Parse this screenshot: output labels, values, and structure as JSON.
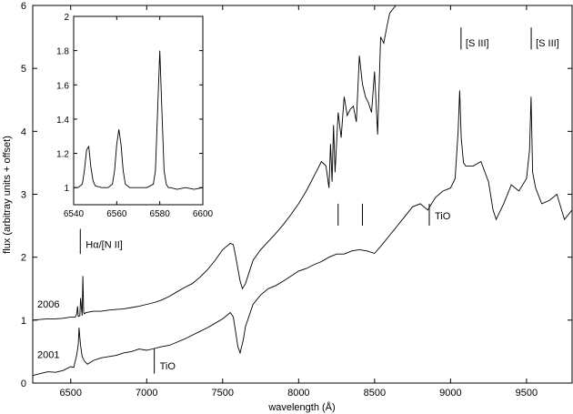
{
  "chart_data": [
    {
      "type": "line",
      "title": "",
      "xlabel": "wavelength (Å)",
      "ylabel": "flux (arbitray units + offset)",
      "xlim": [
        6250,
        9800
      ],
      "ylim": [
        0,
        6
      ],
      "xticks": [
        6500,
        7000,
        7500,
        8000,
        8500,
        9000,
        9500
      ],
      "yticks": [
        0,
        1,
        2,
        3,
        4,
        5,
        6
      ],
      "grid": false,
      "series": [
        {
          "name": "2006",
          "x": [
            6250,
            6300,
            6350,
            6400,
            6450,
            6500,
            6530,
            6540,
            6545,
            6550,
            6560,
            6565,
            6575,
            6580,
            6585,
            6590,
            6600,
            6650,
            6700,
            6750,
            6800,
            6850,
            6900,
            6950,
            7000,
            7050,
            7100,
            7150,
            7200,
            7250,
            7300,
            7350,
            7400,
            7450,
            7500,
            7550,
            7570,
            7585,
            7600,
            7615,
            7630,
            7650,
            7700,
            7750,
            7800,
            7850,
            7900,
            7950,
            8000,
            8050,
            8100,
            8150,
            8180,
            8200,
            8210,
            8220,
            8230,
            8240,
            8260,
            8280,
            8300,
            8320,
            8340,
            8360,
            8380,
            8400,
            8420,
            8440,
            8460,
            8480,
            8500,
            8520,
            8540,
            8560,
            8580,
            8600,
            8640
          ],
          "values": [
            1.0,
            1.01,
            1.02,
            1.02,
            1.03,
            1.05,
            1.05,
            1.1,
            1.22,
            1.06,
            1.07,
            1.35,
            1.07,
            1.7,
            1.12,
            1.1,
            1.12,
            1.14,
            1.14,
            1.16,
            1.17,
            1.18,
            1.2,
            1.22,
            1.25,
            1.28,
            1.32,
            1.38,
            1.45,
            1.52,
            1.58,
            1.68,
            1.8,
            1.95,
            2.12,
            2.22,
            2.2,
            2.02,
            1.82,
            1.62,
            1.5,
            1.58,
            1.95,
            2.12,
            2.25,
            2.38,
            2.52,
            2.68,
            2.85,
            3.05,
            3.28,
            3.52,
            3.45,
            3.1,
            3.8,
            3.2,
            4.1,
            3.35,
            4.3,
            3.9,
            4.55,
            4.25,
            4.35,
            4.4,
            4.15,
            5.2,
            4.75,
            4.55,
            4.45,
            4.3,
            4.95,
            3.95,
            5.5,
            5.4,
            5.65,
            5.88,
            6.0
          ]
        },
        {
          "name": "2001",
          "x": [
            6250,
            6300,
            6350,
            6400,
            6450,
            6500,
            6520,
            6540,
            6550,
            6555,
            6560,
            6565,
            6575,
            6590,
            6610,
            6650,
            6700,
            6750,
            6800,
            6850,
            6900,
            6950,
            7000,
            7050,
            7100,
            7150,
            7200,
            7250,
            7300,
            7350,
            7400,
            7450,
            7500,
            7550,
            7570,
            7585,
            7600,
            7615,
            7635,
            7650,
            7700,
            7750,
            7800,
            7850,
            7900,
            7950,
            8000,
            8050,
            8100,
            8150,
            8200,
            8250,
            8300,
            8350,
            8400,
            8450,
            8500,
            8550,
            8600,
            8650,
            8700,
            8750,
            8800,
            8850,
            8900,
            8950,
            9000,
            9030,
            9050,
            9060,
            9070,
            9085,
            9100,
            9150,
            9200,
            9250,
            9280,
            9300,
            9350,
            9400,
            9450,
            9500,
            9520,
            9530,
            9540,
            9560,
            9600,
            9650,
            9700,
            9750,
            9800
          ],
          "values": [
            0.12,
            0.15,
            0.18,
            0.17,
            0.2,
            0.26,
            0.25,
            0.45,
            0.62,
            0.88,
            0.72,
            0.6,
            0.42,
            0.35,
            0.3,
            0.36,
            0.4,
            0.42,
            0.44,
            0.48,
            0.5,
            0.54,
            0.52,
            0.55,
            0.58,
            0.6,
            0.65,
            0.7,
            0.76,
            0.82,
            0.88,
            0.95,
            1.02,
            1.12,
            1.05,
            0.82,
            0.58,
            0.48,
            0.68,
            0.9,
            1.25,
            1.4,
            1.5,
            1.55,
            1.62,
            1.7,
            1.78,
            1.82,
            1.88,
            1.93,
            2.0,
            2.05,
            2.05,
            2.1,
            2.12,
            2.1,
            2.06,
            2.2,
            2.35,
            2.5,
            2.65,
            2.8,
            2.85,
            2.75,
            2.95,
            3.05,
            3.1,
            3.25,
            4.0,
            4.65,
            3.9,
            3.5,
            3.45,
            3.45,
            3.52,
            3.2,
            2.75,
            2.6,
            2.85,
            3.15,
            3.05,
            3.25,
            3.7,
            4.55,
            3.35,
            3.1,
            2.85,
            2.9,
            3.0,
            2.6,
            2.75
          ]
        }
      ],
      "annotations": [
        {
          "text": "Hα/[N II]",
          "x": 6563
        },
        {
          "text": "TiO",
          "x": 7050
        },
        {
          "text": "TiO",
          "x": 8860
        },
        {
          "text": "[S III]",
          "x": 9069
        },
        {
          "text": "[S III]",
          "x": 9531
        },
        {
          "text": "2006",
          "x": 6250
        },
        {
          "text": "2001",
          "x": 6250
        }
      ],
      "tic_marks_x": [
        8260,
        8420,
        8860
      ]
    },
    {
      "type": "line",
      "role": "inset",
      "title": "",
      "xlim": [
        6540,
        6600
      ],
      "ylim": [
        0.9,
        2.0
      ],
      "xticks": [
        6540,
        6560,
        6580,
        6600
      ],
      "yticks": [
        1,
        1.2,
        1.4,
        1.6,
        1.8,
        2
      ],
      "series": [
        {
          "name": "",
          "x": [
            6540,
            6542,
            6544,
            6545,
            6546,
            6547,
            6548,
            6549,
            6550,
            6553,
            6556,
            6558,
            6559,
            6560,
            6561,
            6562,
            6563,
            6564,
            6566,
            6570,
            6574,
            6577,
            6578,
            6579,
            6580,
            6581,
            6582,
            6583,
            6584,
            6585,
            6588,
            6592,
            6596,
            6600
          ],
          "values": [
            1.0,
            1.0,
            1.02,
            1.1,
            1.22,
            1.24,
            1.12,
            1.04,
            1.01,
            1.0,
            1.0,
            1.02,
            1.1,
            1.25,
            1.34,
            1.25,
            1.1,
            1.02,
            1.0,
            1.0,
            1.0,
            1.02,
            1.1,
            1.45,
            1.8,
            1.45,
            1.1,
            1.02,
            1.0,
            1.0,
            0.99,
            1.0,
            0.99,
            1.0
          ]
        }
      ]
    }
  ]
}
